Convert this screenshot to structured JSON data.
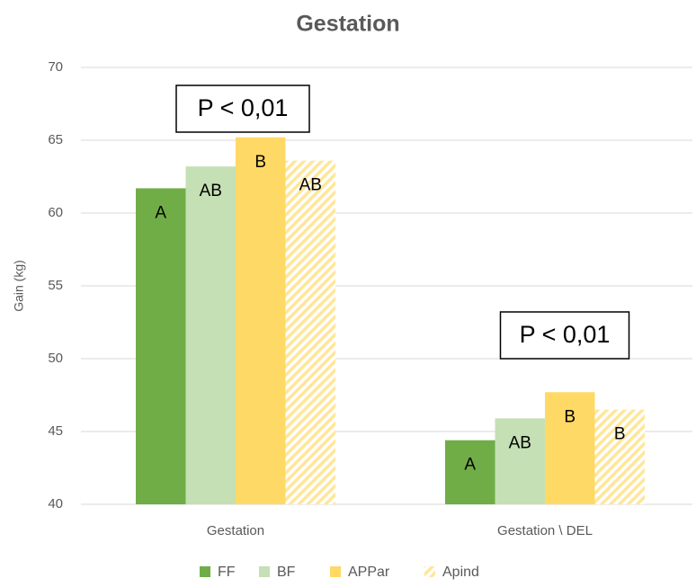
{
  "chart_data": {
    "type": "bar",
    "title": "Gestation",
    "y_label": "Gain (kg)",
    "categories": [
      "Gestation",
      "Gestation \\ DEL"
    ],
    "series": [
      {
        "name": "FF",
        "color": "#70ad47",
        "values": [
          61.7,
          44.4
        ],
        "letters": [
          "A",
          "A"
        ]
      },
      {
        "name": "BF",
        "color": "#c5e0b4",
        "values": [
          63.2,
          45.9
        ],
        "letters": [
          "AB",
          "AB"
        ]
      },
      {
        "name": "APPar",
        "color": "#ffd966",
        "values": [
          65.2,
          47.7
        ],
        "letters": [
          "B",
          "B"
        ]
      },
      {
        "name": "Apind",
        "color": "#ffe699",
        "hatch": true,
        "values": [
          63.6,
          46.5
        ],
        "letters": [
          "AB",
          "B"
        ]
      }
    ],
    "annotations": [
      "P < 0,01",
      "P < 0,01"
    ],
    "ylim": [
      40,
      70
    ],
    "yticks": [
      40,
      45,
      50,
      55,
      60,
      65,
      70
    ],
    "grid": true,
    "legend": "bottom"
  }
}
